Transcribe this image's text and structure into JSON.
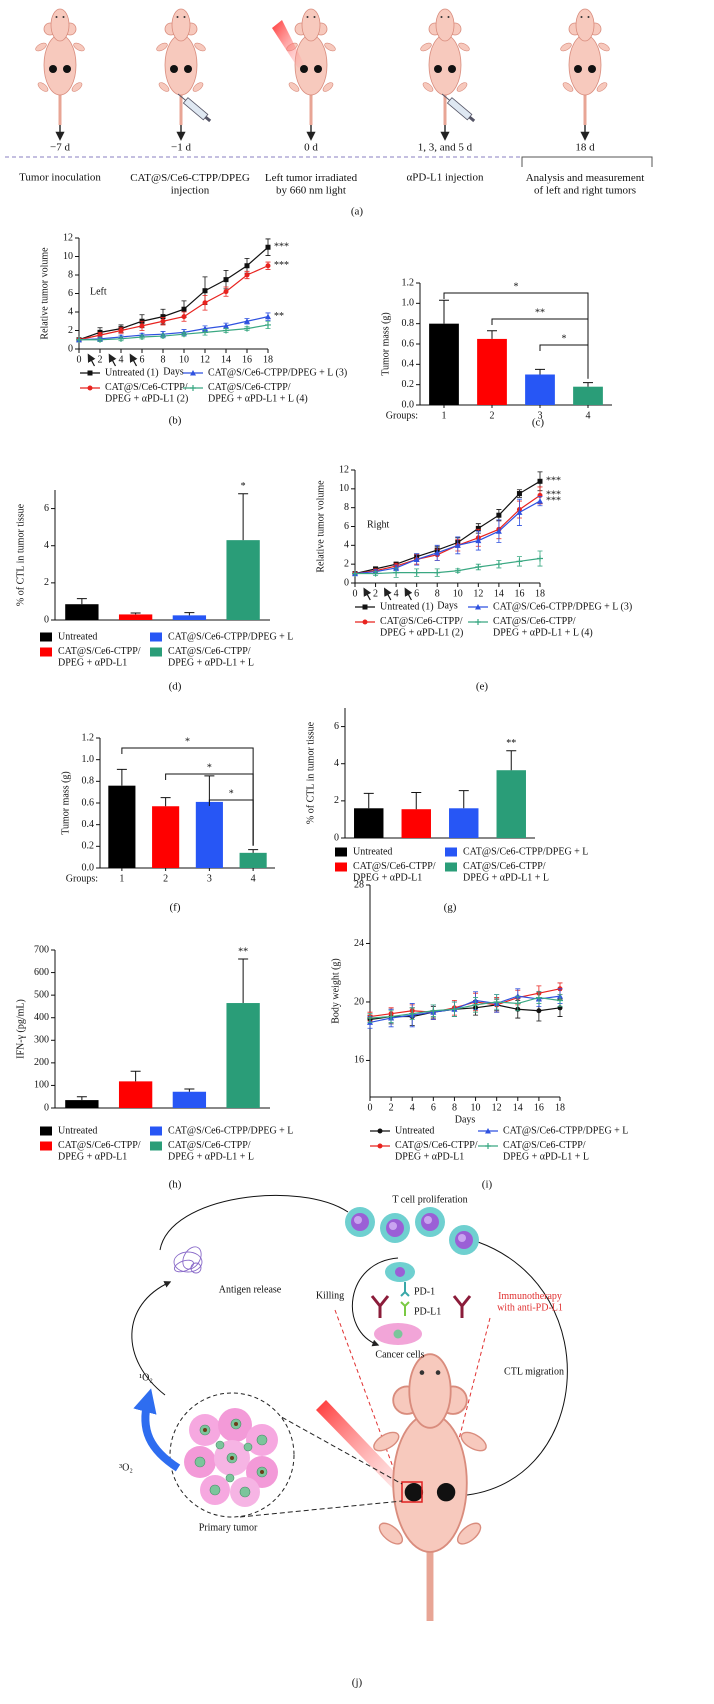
{
  "timeline": {
    "events": [
      {
        "time": "−7 d",
        "caption": "Tumor inoculation"
      },
      {
        "time": "−1 d",
        "caption": "CAT@S/Ce6-CTPP/DPEG\ninjection"
      },
      {
        "time": "0 d",
        "caption": "Left tumor irradiated\nby 660 nm light"
      },
      {
        "time": "1, 3, and 5 d",
        "caption": "αPD-L1 injection"
      },
      {
        "time": "18 d",
        "caption": "Analysis and measurement\nof left and right tumors"
      }
    ],
    "panel_label": "(a)"
  },
  "chart_data": [
    {
      "type": "line",
      "panel_label": "(b)",
      "annotation": "Left",
      "xlabel": "Days",
      "ylabel": "Relative tumor volume",
      "x": [
        0,
        2,
        4,
        6,
        8,
        10,
        12,
        14,
        16,
        18
      ],
      "xlim": [
        0,
        18
      ],
      "xticks": [
        0,
        2,
        4,
        6,
        8,
        10,
        12,
        14,
        16,
        18
      ],
      "ylim": [
        0,
        12
      ],
      "yticks": [
        0,
        2,
        4,
        6,
        8,
        10,
        12
      ],
      "injection_days": [
        1,
        3,
        5
      ],
      "series": [
        {
          "name": "Untreated (1)",
          "color": "#111111",
          "marker": "square",
          "significance": "***",
          "values": [
            1,
            1.8,
            2.2,
            3,
            3.5,
            4.3,
            6.3,
            7.5,
            9,
            11
          ],
          "errors": [
            0,
            0.5,
            0.4,
            0.7,
            0.8,
            0.9,
            1.5,
            1.0,
            0.8,
            0.9
          ]
        },
        {
          "name": "CAT@S/Ce6-CTPP/\nDPEG + αPD-L1 (2)",
          "color": "#e8231f",
          "marker": "circle",
          "significance": "***",
          "values": [
            1,
            1.5,
            2,
            2.5,
            3,
            3.5,
            5,
            6.2,
            8,
            9
          ],
          "errors": [
            0,
            0.3,
            0.3,
            0.5,
            0.4,
            0.5,
            0.8,
            0.5,
            0.4,
            0.4
          ]
        },
        {
          "name": "CAT@S/Ce6-CTPP/DPEG + L (3)",
          "color": "#2f52e0",
          "marker": "triangle",
          "significance": "**",
          "values": [
            1,
            1.1,
            1.3,
            1.5,
            1.6,
            1.8,
            2.2,
            2.5,
            3,
            3.5
          ],
          "errors": [
            0,
            0.2,
            0.2,
            0.2,
            0.3,
            0.3,
            0.3,
            0.3,
            0.3,
            0.4
          ]
        },
        {
          "name": "CAT@S/Ce6-CTPP/\nDPEG + αPD-L1 + L (4)",
          "color": "#3aa882",
          "marker": "plus",
          "values": [
            1,
            1,
            1.1,
            1.3,
            1.4,
            1.6,
            1.8,
            2,
            2.2,
            2.6
          ],
          "errors": [
            0,
            0.2,
            0.2,
            0.2,
            0.2,
            0.2,
            0.3,
            0.2,
            0.2,
            0.4
          ]
        }
      ]
    },
    {
      "type": "bar",
      "panel_label": "(c)",
      "ylabel": "Tumor mass (g)",
      "category_label": "Groups:",
      "categories": [
        "1",
        "2",
        "3",
        "4"
      ],
      "values": [
        0.8,
        0.65,
        0.3,
        0.18
      ],
      "errors": [
        0.23,
        0.08,
        0.05,
        0.04
      ],
      "colors": [
        "#000000",
        "#ff0000",
        "#2756f5",
        "#2a9d78"
      ],
      "ylim": [
        0,
        1.2
      ],
      "yticks": [
        {
          "value": 0,
          "label": "0.0"
        },
        0.2,
        0.4,
        0.6,
        0.8,
        {
          "value": 1,
          "label": "1.0"
        },
        1.2
      ],
      "brackets": [
        {
          "groups": [
            "1",
            "4"
          ],
          "label": "*"
        },
        {
          "groups": [
            "2",
            "4"
          ],
          "label": "**"
        },
        {
          "groups": [
            "3",
            "4"
          ],
          "label": "*"
        }
      ]
    },
    {
      "type": "bar",
      "panel_label": "(d)",
      "ylabel": "% of CTL in tumor tissue",
      "legend": true,
      "categories": [
        "Untreated",
        "CAT@S/Ce6-CTPP/\nDPEG + αPD-L1",
        "CAT@S/Ce6-CTPP/DPEG + L",
        "CAT@S/Ce6-CTPP/\nDPEG + αPD-L1 + L"
      ],
      "values": [
        0.85,
        0.3,
        0.25,
        4.3
      ],
      "errors": [
        0.3,
        0.08,
        0.15,
        2.5
      ],
      "significance": [
        null,
        null,
        null,
        "*"
      ],
      "colors": [
        "#000000",
        "#ff0000",
        "#2756f5",
        "#2a9d78"
      ],
      "ylim": [
        0,
        7
      ],
      "yticks": [
        0,
        2,
        4,
        6
      ]
    },
    {
      "type": "line",
      "panel_label": "(e)",
      "annotation": "Right",
      "xlabel": "Days",
      "ylabel": "Relative tumor volume",
      "x": [
        0,
        2,
        4,
        6,
        8,
        10,
        12,
        14,
        16,
        18
      ],
      "xlim": [
        0,
        18
      ],
      "xticks": [
        0,
        2,
        4,
        6,
        8,
        10,
        12,
        14,
        16,
        18
      ],
      "ylim": [
        0,
        12
      ],
      "yticks": [
        0,
        2,
        4,
        6,
        8,
        10,
        12
      ],
      "injection_days": [
        1,
        3,
        5
      ],
      "series": [
        {
          "name": "Untreated (1)",
          "color": "#111111",
          "marker": "square",
          "significance": "***",
          "values": [
            1,
            1.5,
            2,
            2.8,
            3.5,
            4.3,
            5.8,
            7.2,
            9.5,
            10.8
          ],
          "errors": [
            0,
            0.2,
            0.2,
            0.3,
            0.4,
            0.5,
            0.5,
            0.6,
            0.4,
            1.0
          ]
        },
        {
          "name": "CAT@S/Ce6-CTPP/\nDPEG + αPD-L1 (2)",
          "color": "#e8231f",
          "marker": "circle",
          "significance": "***",
          "values": [
            1,
            1.3,
            1.8,
            2.5,
            3,
            4,
            4.8,
            5.7,
            7.8,
            9.3
          ],
          "errors": [
            0,
            0.2,
            0.3,
            0.5,
            0.6,
            0.6,
            0.9,
            1.0,
            0.9,
            0.9
          ]
        },
        {
          "name": "CAT@S/Ce6-CTPP/DPEG + L (3)",
          "color": "#2f52e0",
          "marker": "triangle",
          "significance": "***",
          "values": [
            1,
            1.2,
            1.6,
            2.5,
            3.2,
            4,
            4.5,
            5.5,
            7.5,
            8.7
          ],
          "errors": [
            0,
            0.2,
            0.3,
            0.6,
            0.8,
            0.9,
            1.0,
            1.2,
            1.4,
            0.5
          ]
        },
        {
          "name": "CAT@S/Ce6-CTPP/\nDPEG + αPD-L1 + L (4)",
          "color": "#3aa882",
          "marker": "plus",
          "values": [
            1,
            1,
            1.1,
            1.1,
            1.1,
            1.3,
            1.7,
            2,
            2.3,
            2.6
          ],
          "errors": [
            0,
            0.2,
            0.5,
            0.4,
            0.4,
            0.2,
            0.3,
            0.4,
            0.5,
            0.8
          ]
        }
      ]
    },
    {
      "type": "bar",
      "panel_label": "(f)",
      "ylabel": "Tumor mass (g)",
      "category_label": "Groups:",
      "categories": [
        "1",
        "2",
        "3",
        "4"
      ],
      "values": [
        0.76,
        0.57,
        0.61,
        0.14
      ],
      "errors": [
        0.15,
        0.08,
        0.24,
        0.03
      ],
      "colors": [
        "#000000",
        "#ff0000",
        "#2756f5",
        "#2a9d78"
      ],
      "ylim": [
        0,
        1.2
      ],
      "yticks": [
        {
          "value": 0,
          "label": "0.0"
        },
        0.2,
        0.4,
        0.6,
        0.8,
        {
          "value": 1,
          "label": "1.0"
        },
        1.2
      ],
      "brackets": [
        {
          "groups": [
            "1",
            "4"
          ],
          "label": "*"
        },
        {
          "groups": [
            "2",
            "4"
          ],
          "label": "*"
        },
        {
          "groups": [
            "3",
            "4"
          ],
          "label": "*"
        }
      ]
    },
    {
      "type": "bar",
      "panel_label": "(g)",
      "ylabel": "% of CTL in tumor tissue",
      "legend": true,
      "categories": [
        "Untreated",
        "CAT@S/Ce6-CTPP/\nDPEG + αPD-L1",
        "CAT@S/Ce6-CTPP/DPEG + L",
        "CAT@S/Ce6-CTPP/\nDPEG + αPD-L1 + L"
      ],
      "values": [
        1.6,
        1.55,
        1.6,
        3.65
      ],
      "errors": [
        0.8,
        0.9,
        0.95,
        1.05
      ],
      "significance": [
        null,
        null,
        null,
        "**"
      ],
      "colors": [
        "#000000",
        "#ff0000",
        "#2756f5",
        "#2a9d78"
      ],
      "ylim": [
        0,
        7
      ],
      "yticks": [
        0,
        2,
        4,
        6
      ]
    },
    {
      "type": "bar",
      "panel_label": "(h)",
      "ylabel": "IFN-γ (pg/mL)",
      "legend": true,
      "categories": [
        "Untreated",
        "CAT@S/Ce6-CTPP/\nDPEG + αPD-L1",
        "CAT@S/Ce6-CTPP/DPEG + L",
        "CAT@S/Ce6-CTPP/\nDPEG + αPD-L1 + L"
      ],
      "values": [
        35,
        118,
        72,
        465
      ],
      "errors": [
        15,
        45,
        12,
        195
      ],
      "significance": [
        null,
        null,
        null,
        "**"
      ],
      "colors": [
        "#000000",
        "#ff0000",
        "#2756f5",
        "#2a9d78"
      ],
      "ylim": [
        0,
        700
      ],
      "yticks": [
        0,
        100,
        200,
        300,
        400,
        500,
        600,
        700
      ]
    },
    {
      "type": "line",
      "panel_label": "(i)",
      "xlabel": "Days",
      "ylabel": "Body weight (g)",
      "x": [
        0,
        2,
        4,
        6,
        8,
        10,
        12,
        14,
        16,
        18
      ],
      "xlim": [
        0,
        18
      ],
      "xticks": [
        0,
        2,
        4,
        6,
        8,
        10,
        12,
        14,
        16,
        18
      ],
      "ylim": [
        13.5,
        28
      ],
      "yticks": [
        16,
        20,
        24,
        28
      ],
      "series": [
        {
          "name": "Untreated",
          "color": "#111111",
          "marker": "circle",
          "values": [
            18.8,
            19,
            19,
            19.3,
            19.5,
            19.6,
            19.8,
            19.5,
            19.4,
            19.6
          ],
          "errors": [
            0.3,
            0.5,
            0.6,
            0.4,
            0.5,
            0.5,
            0.4,
            0.6,
            0.7,
            0.6
          ]
        },
        {
          "name": "CAT@S/Ce6-CTPP/\nDPEG + αPD-L1",
          "color": "#e8231f",
          "marker": "circle",
          "values": [
            19,
            19.2,
            19.4,
            19.3,
            19.6,
            20,
            19.8,
            20.3,
            20.6,
            20.9
          ],
          "errors": [
            0.3,
            0.4,
            0.4,
            0.5,
            0.5,
            0.6,
            0.5,
            0.5,
            0.5,
            0.4
          ]
        },
        {
          "name": "CAT@S/Ce6-CTPP/DPEG + L",
          "color": "#2f52e0",
          "marker": "triangle",
          "values": [
            18.6,
            18.9,
            19.1,
            19.3,
            19.5,
            20.1,
            19.9,
            20.4,
            20.2,
            20.4
          ],
          "errors": [
            0.4,
            0.6,
            0.8,
            0.5,
            0.5,
            0.6,
            0.6,
            0.5,
            0.5,
            0.5
          ]
        },
        {
          "name": "CAT@S/Ce6-CTPP/\nDPEG + αPD-L1 + L",
          "color": "#3aa882",
          "marker": "plus",
          "values": [
            18.9,
            19,
            19.2,
            19.4,
            19.5,
            19.8,
            20,
            19.9,
            20.3,
            20.1
          ],
          "errors": [
            0.3,
            0.4,
            0.4,
            0.4,
            0.5,
            0.5,
            0.5,
            0.5,
            0.4,
            0.4
          ]
        }
      ]
    }
  ],
  "schematic": {
    "t_cell_proliferation": "T cell proliferation",
    "antigen_release": "Antigen release",
    "killing": "Killing",
    "pd1": "PD-1",
    "pdl1": "PD-L1",
    "cancer_cells": "Cancer cells",
    "immunotherapy": "Immunotherapy\nwith anti-PD-L1",
    "ctl_migration": "CTL migration",
    "singlet_oxygen": "¹O₂",
    "triplet_oxygen": "³O₂",
    "primary_tumor": "Primary tumor",
    "panel_label": "(j)"
  }
}
